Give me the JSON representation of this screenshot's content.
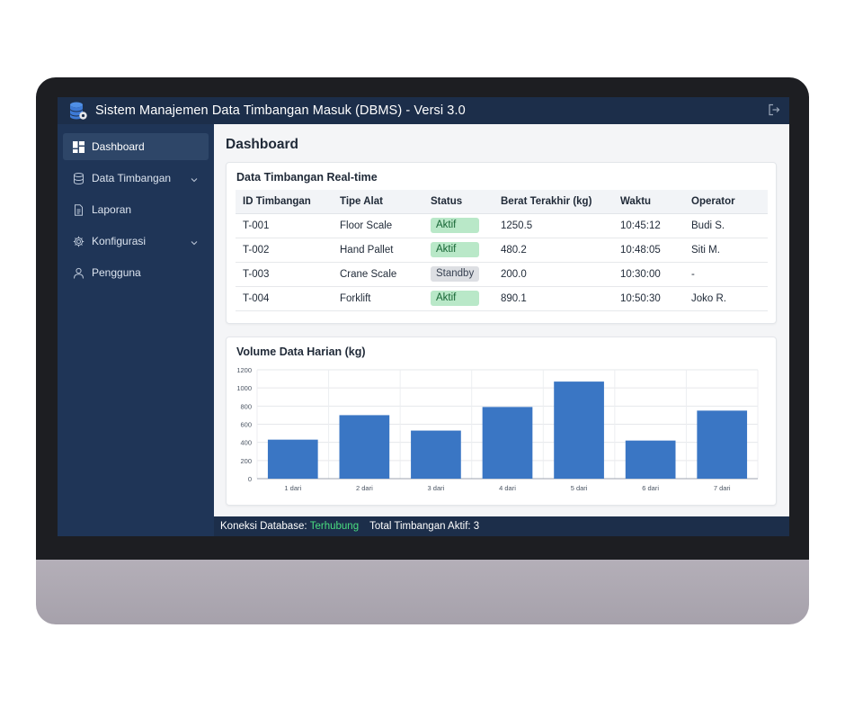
{
  "app": {
    "title": "Sistem Manajemen Data Timbangan Masuk (DBMS) - Versi 3.0",
    "icons": {
      "app": "database-gear-icon",
      "logout": "logout-icon"
    }
  },
  "sidebar": {
    "items": [
      {
        "label": "Dashboard",
        "icon": "dashboard-grid-icon",
        "active": true,
        "has_submenu": false
      },
      {
        "label": "Data Timbangan",
        "icon": "database-icon",
        "active": false,
        "has_submenu": true
      },
      {
        "label": "Laporan",
        "icon": "document-icon",
        "active": false,
        "has_submenu": false
      },
      {
        "label": "Konfigurasi",
        "icon": "gear-icon",
        "active": false,
        "has_submenu": true
      },
      {
        "label": "Pengguna",
        "icon": "user-icon",
        "active": false,
        "has_submenu": false
      }
    ]
  },
  "main": {
    "page_title": "Dashboard",
    "table_card": {
      "title": "Data Timbangan Real-time",
      "columns": [
        "ID Timbangan",
        "Tipe Alat",
        "Status",
        "Berat Terakhir (kg)",
        "Waktu",
        "Operator"
      ],
      "rows": [
        {
          "id": "T-001",
          "tipe": "Floor Scale",
          "status": "Aktif",
          "berat": "1250.5",
          "waktu": "10:45:12",
          "operator": "Budi S."
        },
        {
          "id": "T-002",
          "tipe": "Hand Pallet",
          "status": "Aktif",
          "berat": "480.2",
          "waktu": "10:48:05",
          "operator": "Siti M."
        },
        {
          "id": "T-003",
          "tipe": "Crane Scale",
          "status": "Standby",
          "berat": "200.0",
          "waktu": "10:30:00",
          "operator": "-"
        },
        {
          "id": "T-004",
          "tipe": "Forklift",
          "status": "Aktif",
          "berat": "890.1",
          "waktu": "10:50:30",
          "operator": "Joko R."
        }
      ],
      "status_colors": {
        "Aktif": {
          "bg": "#b9e8c8",
          "fg": "#166534"
        },
        "Standby": {
          "bg": "#dddfe3",
          "fg": "#374151"
        }
      }
    },
    "chart_card": {
      "title": "Volume Data Harian (kg)"
    }
  },
  "chart_data": {
    "type": "bar",
    "title": "Volume Data Harian (kg)",
    "categories": [
      "1 dari",
      "2 dari",
      "3 dari",
      "4 dari",
      "5 dari",
      "6 dari",
      "7 dari"
    ],
    "values": [
      430,
      700,
      530,
      790,
      1070,
      420,
      750
    ],
    "ylim": [
      0,
      1200
    ],
    "yticks": [
      0,
      200,
      400,
      600,
      800,
      1000,
      1200
    ],
    "grid": true,
    "bar_color": "#3a76c4",
    "xlabel": "",
    "ylabel": ""
  },
  "statusbar": {
    "db_label": "Koneksi Database:",
    "db_status": "Terhubung",
    "active_label": "Total Timbangan Aktif: 3"
  }
}
